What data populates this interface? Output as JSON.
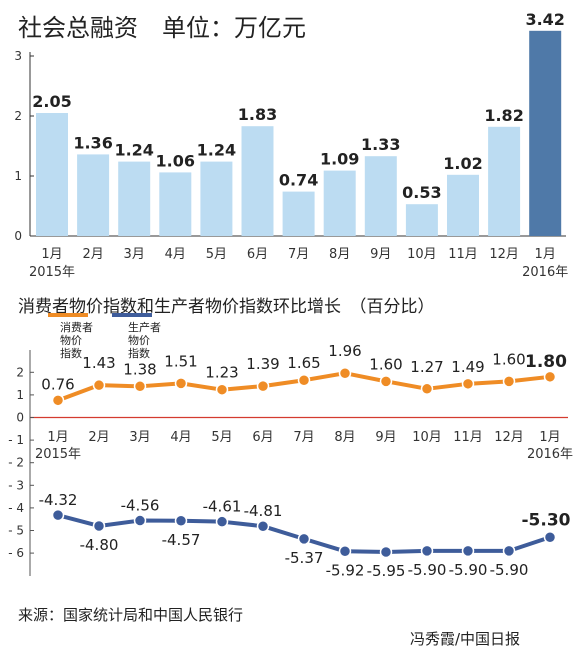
{
  "chart_data": [
    {
      "type": "bar",
      "title": "社会总融资　单位：万亿元",
      "categories": [
        "1月",
        "2月",
        "3月",
        "4月",
        "5月",
        "6月",
        "7月",
        "8月",
        "9月",
        "10月",
        "11月",
        "12月",
        "1月"
      ],
      "year_labels": [
        {
          "index": 0,
          "text": "2015年"
        },
        {
          "index": 12,
          "text": "2016年"
        }
      ],
      "values": [
        2.05,
        1.36,
        1.24,
        1.06,
        1.24,
        1.83,
        0.74,
        1.09,
        1.33,
        0.53,
        1.02,
        1.82,
        3.42
      ],
      "value_labels": [
        "2.05",
        "1.36",
        "1.24",
        "1.06",
        "1.24",
        "1.83",
        "0.74",
        "1.09",
        "1.33",
        "0.53",
        "1.02",
        "1.82",
        "3.42"
      ],
      "ylim": [
        0,
        3.6
      ],
      "yticks": [
        0,
        1,
        2,
        3
      ],
      "grid": false,
      "colors": {
        "bar": "#bcdcf2",
        "highlight": "#4f79a8"
      },
      "highlight_index": 12
    },
    {
      "type": "line",
      "title": "消费者物价指数和生产者物价指数环比增长　（百分比）",
      "categories": [
        "1月",
        "2月",
        "3月",
        "4月",
        "5月",
        "6月",
        "7月",
        "8月",
        "9月",
        "10月",
        "11月",
        "12月",
        "1月"
      ],
      "year_labels": [
        {
          "index": 0,
          "text": "2015年"
        },
        {
          "index": 12,
          "text": "2016年"
        }
      ],
      "ylim": [
        -6.5,
        2.5
      ],
      "yticks": [
        2,
        1,
        0,
        -1,
        -2,
        -3,
        -4,
        -5,
        -6
      ],
      "ytick_labels": [
        "2",
        "1",
        "0",
        "- 1",
        "- 2",
        "- 3",
        "- 4",
        "- 5",
        "- 6"
      ],
      "legend_placement": "top-left",
      "series": [
        {
          "name": "消费者物价指数",
          "legend_lines": [
            "消费者",
            "物价",
            "指数"
          ],
          "color": "#ef8c25",
          "values": [
            0.76,
            1.43,
            1.38,
            1.51,
            1.23,
            1.39,
            1.65,
            1.96,
            1.6,
            1.27,
            1.49,
            1.6,
            1.8
          ],
          "labels": [
            "0.76",
            "1.43",
            "1.38",
            "1.51",
            "1.23",
            "1.39",
            "1.65",
            "1.96",
            "1.60",
            "1.27",
            "1.49",
            "1.60",
            "1.80"
          ]
        },
        {
          "name": "生产者物价指数",
          "legend_lines": [
            "生产者",
            "物价",
            "指数"
          ],
          "color": "#3e5c9a",
          "values": [
            -4.32,
            -4.8,
            -4.56,
            -4.57,
            -4.61,
            -4.81,
            -5.37,
            -5.92,
            -5.95,
            -5.9,
            -5.9,
            -5.9,
            -5.3
          ],
          "labels": [
            "-4.32",
            "-4.80",
            "-4.56",
            "-4.57",
            "-4.61",
            "-4.81",
            "-5.37",
            "-5.92",
            "-5.95",
            "-5.90",
            "-5.90",
            "-5.90",
            "-5.30"
          ]
        }
      ]
    }
  ],
  "footer": {
    "source": "来源：国家统计局和中国人民银行",
    "credit": "冯秀霞/中国日报"
  }
}
